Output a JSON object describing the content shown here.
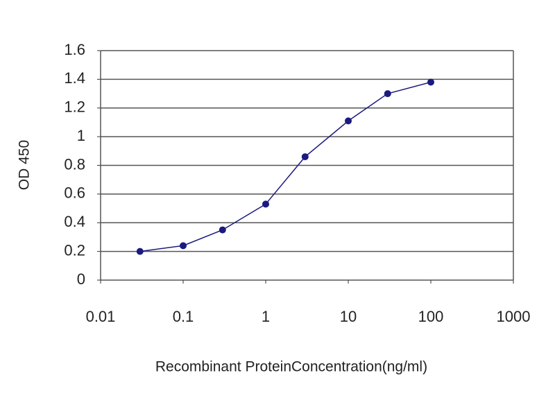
{
  "chart_data": {
    "type": "line",
    "x": [
      0.03,
      0.1,
      0.3,
      1,
      3,
      10,
      30,
      100
    ],
    "series": [
      {
        "color": "#1a1a80",
        "values": [
          0.2,
          0.24,
          0.35,
          0.53,
          0.86,
          1.11,
          1.3,
          1.38
        ]
      }
    ],
    "xlabel": "Recombinant ProteinConcentration(ng/ml)",
    "ylabel": "OD 450",
    "xscale": "log",
    "xlim": [
      0.01,
      1000
    ],
    "xticks": [
      0.01,
      0.1,
      1,
      10,
      100,
      1000
    ],
    "ylim": [
      0,
      1.6
    ],
    "yticks": [
      0,
      0.2,
      0.4,
      0.6,
      0.8,
      1,
      1.2,
      1.4,
      1.6
    ],
    "grid": true
  }
}
